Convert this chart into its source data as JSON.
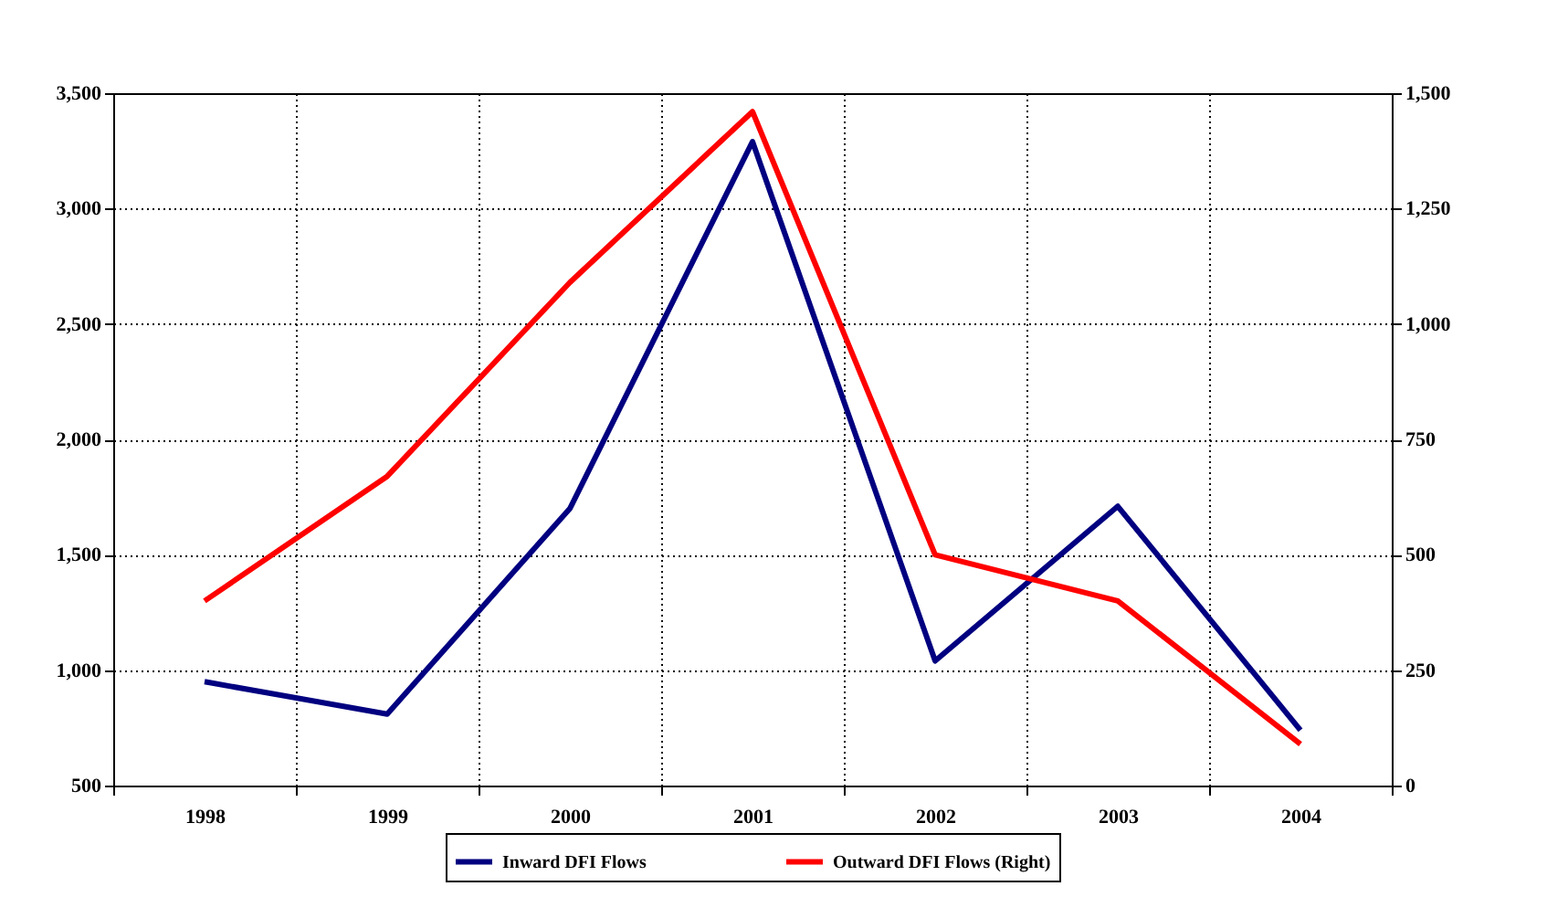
{
  "chart_data": {
    "type": "line",
    "categories": [
      "1998",
      "1999",
      "2000",
      "2001",
      "2002",
      "2003",
      "2004"
    ],
    "series": [
      {
        "name": "Inward DFI Flows",
        "color": "#000080",
        "values": [
          950,
          810,
          1700,
          3290,
          1040,
          1710,
          740
        ]
      },
      {
        "name": "Outward DFI Flows (Right)",
        "color": "#ff0000",
        "axis": "y2",
        "values": [
          400,
          670,
          1090,
          1460,
          500,
          400,
          90
        ]
      }
    ],
    "ylim": [
      500,
      3500
    ],
    "yticks": [
      500,
      {
        "value": 1000,
        "label": "1,000"
      },
      {
        "value": 1500,
        "label": "1,500"
      },
      {
        "value": 2000,
        "label": "2,000"
      },
      {
        "value": 2500,
        "label": "2,500"
      },
      {
        "value": 3000,
        "label": "3,000"
      },
      {
        "value": 3500,
        "label": "3,500"
      }
    ],
    "y2lim": [
      0,
      1500
    ],
    "y2ticks": [
      0,
      250,
      500,
      750,
      {
        "value": 1000,
        "label": "1,000"
      },
      {
        "value": 1250,
        "label": "1,250"
      },
      {
        "value": 1500,
        "label": "1,500"
      }
    ],
    "grid": true,
    "legend": "bottom",
    "marker": "none",
    "line_style": "solid"
  }
}
